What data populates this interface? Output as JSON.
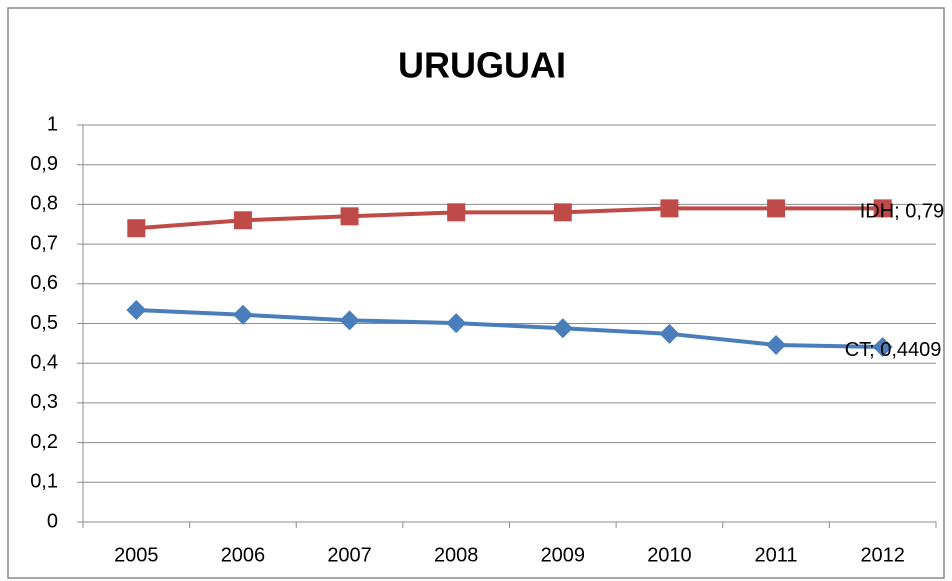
{
  "chart_data": {
    "type": "line",
    "title": "URUGUAI",
    "categories": [
      "2005",
      "2006",
      "2007",
      "2008",
      "2009",
      "2010",
      "2011",
      "2012"
    ],
    "series": [
      {
        "color": "#be4b48",
        "marker": "square",
        "values": [
          0.74,
          0.76,
          0.77,
          0.78,
          0.78,
          0.79,
          0.79,
          0.79
        ],
        "value_labels": [
          null,
          null,
          null,
          null,
          null,
          null,
          null,
          "IDH; 0,79"
        ]
      },
      {
        "color": "#4a7ebb",
        "marker": "diamond",
        "values": [
          0.534,
          0.522,
          0.508,
          0.501,
          0.488,
          0.474,
          0.446,
          0.4409
        ],
        "value_labels": [
          null,
          null,
          null,
          null,
          null,
          null,
          null,
          "CT; 0,4409"
        ]
      }
    ],
    "ylim": [
      0,
      1
    ],
    "yticks": [
      0,
      {
        "value": 0.1,
        "label": "0,1"
      },
      {
        "value": 0.2,
        "label": "0,2"
      },
      {
        "value": 0.3,
        "label": "0,3"
      },
      {
        "value": 0.4,
        "label": "0,4"
      },
      {
        "value": 0.5,
        "label": "0,5"
      },
      {
        "value": 0.6,
        "label": "0,6"
      },
      {
        "value": 0.7,
        "label": "0,7"
      },
      {
        "value": 0.8,
        "label": "0,8"
      },
      {
        "value": 0.9,
        "label": "0,9"
      },
      1
    ],
    "grid": true
  }
}
